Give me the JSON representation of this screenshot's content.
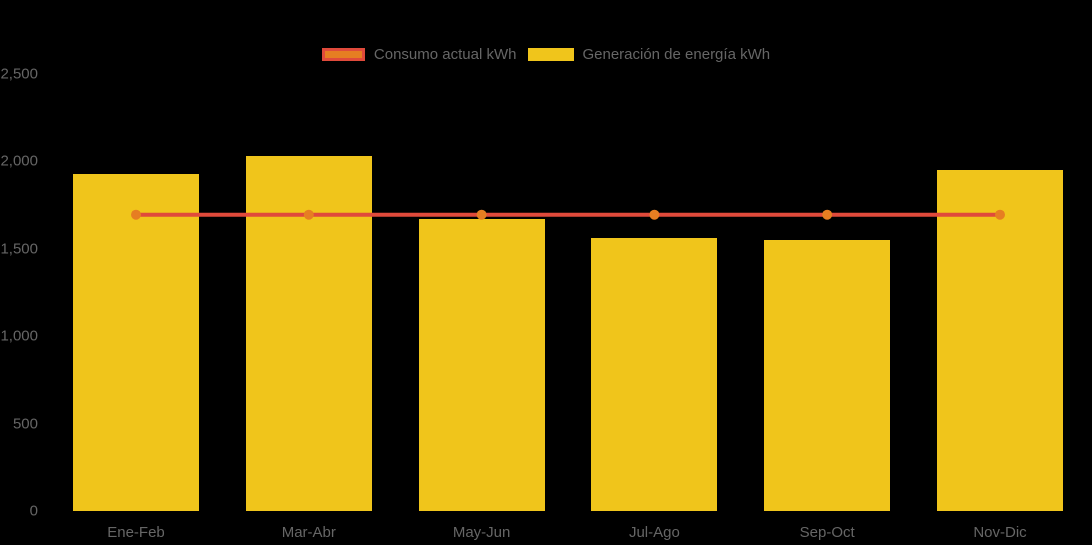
{
  "chart_data": {
    "type": "combo-bar-line",
    "title": "",
    "xlabel": "",
    "ylabel": "",
    "categories": [
      "Ene-Feb",
      "Mar-Abr",
      "May-Jun",
      "Jul-Ago",
      "Sep-Oct",
      "Nov-Dic"
    ],
    "series": [
      {
        "name": "Consumo actual kWh",
        "type": "line",
        "color": "#e04a3b",
        "marker_color": "#e67e22",
        "values": [
          1695,
          1695,
          1695,
          1695,
          1695,
          1695
        ]
      },
      {
        "name": "Generación de energía kWh",
        "type": "bar",
        "color": "#f0c51b",
        "values": [
          1930,
          2030,
          1670,
          1560,
          1550,
          1950
        ]
      }
    ],
    "ylim": [
      0,
      2500
    ],
    "ytick_step": 500,
    "ytick_labels": [
      "0",
      "500",
      "1,000",
      "1,500",
      "2,000",
      "2,500"
    ],
    "grid": false,
    "legend_position": "top",
    "background_color": "#000000",
    "axis_text_color": "#666666",
    "legend_text_color": "#666666"
  }
}
